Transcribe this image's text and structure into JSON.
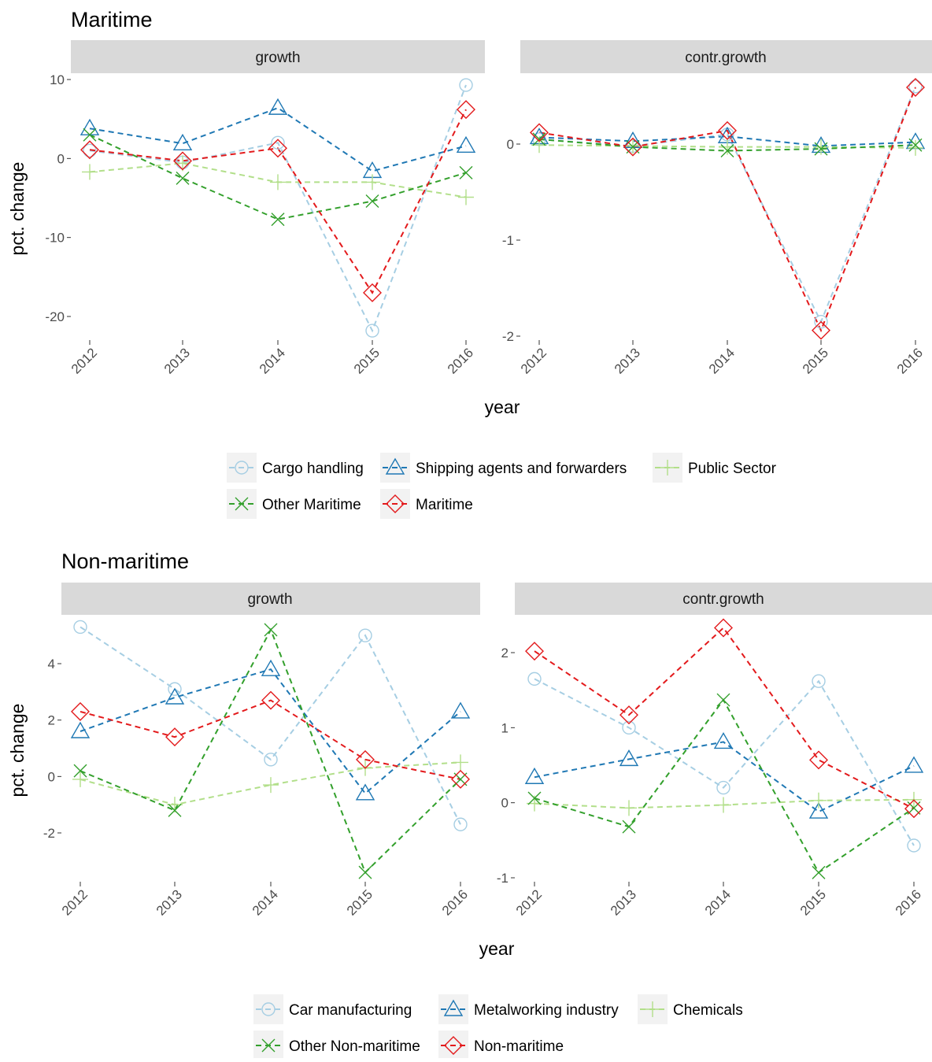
{
  "sections": [
    {
      "title": "Maritime",
      "ylabel": "pct. change",
      "xlabel": "year",
      "panels": [
        {
          "strip": "growth"
        },
        {
          "strip": "contr.growth"
        }
      ],
      "legend": [
        "Cargo handling",
        "Shipping agents and forwarders",
        "Public Sector",
        "Other Maritime",
        "Maritime"
      ]
    },
    {
      "title": "Non-maritime",
      "ylabel": "pct. change",
      "xlabel": "year",
      "panels": [
        {
          "strip": "growth"
        },
        {
          "strip": "contr.growth"
        }
      ],
      "legend": [
        "Car manufacturing",
        "Metalworking industry",
        "Chemicals",
        "Other Non-maritime",
        "Non-maritime"
      ]
    }
  ],
  "series_style": {
    "colors": [
      "#a6cee3",
      "#1f78b4",
      "#b2df8a",
      "#33a02c",
      "#e31a1c"
    ],
    "shapes": [
      "circle",
      "triangle",
      "plus",
      "cross",
      "diamond"
    ],
    "line": "dashed"
  },
  "chart_data": [
    {
      "type": "line",
      "section": "Maritime",
      "facet": "growth",
      "x": [
        2012,
        2013,
        2014,
        2015,
        2016
      ],
      "ylim": [
        -23,
        10
      ],
      "yticks": [
        10,
        0,
        -10,
        -20
      ],
      "series": [
        {
          "name": "Cargo handling",
          "values": [
            1.0,
            -0.5,
            2.0,
            -21.8,
            9.3
          ]
        },
        {
          "name": "Shipping agents and forwarders",
          "values": [
            3.8,
            1.9,
            6.4,
            -1.6,
            1.6
          ]
        },
        {
          "name": "Public Sector",
          "values": [
            -1.7,
            -0.6,
            -3.0,
            -3.0,
            -4.9
          ]
        },
        {
          "name": "Other Maritime",
          "values": [
            3.0,
            -2.5,
            -7.7,
            -5.4,
            -1.8
          ]
        },
        {
          "name": "Maritime",
          "values": [
            1.1,
            -0.3,
            1.3,
            -17.0,
            6.2
          ]
        }
      ]
    },
    {
      "type": "line",
      "section": "Maritime",
      "facet": "contr.growth",
      "x": [
        2012,
        2013,
        2014,
        2015,
        2016
      ],
      "ylim": [
        -2.1,
        0.6
      ],
      "yticks": [
        0,
        -1,
        -2
      ],
      "series": [
        {
          "name": "Cargo handling",
          "values": [
            0.05,
            -0.02,
            0.1,
            -1.85,
            0.6
          ]
        },
        {
          "name": "Shipping agents and forwarders",
          "values": [
            0.07,
            0.03,
            0.08,
            -0.02,
            0.02
          ]
        },
        {
          "name": "Public Sector",
          "values": [
            -0.01,
            -0.02,
            -0.03,
            -0.03,
            -0.04
          ]
        },
        {
          "name": "Other Maritime",
          "values": [
            0.05,
            -0.03,
            -0.07,
            -0.05,
            -0.01
          ]
        },
        {
          "name": "Maritime",
          "values": [
            0.12,
            -0.03,
            0.14,
            -1.94,
            0.59
          ]
        }
      ]
    },
    {
      "type": "line",
      "section": "Non-maritime",
      "facet": "growth",
      "x": [
        2012,
        2013,
        2014,
        2015,
        2016
      ],
      "ylim": [
        -3.5,
        5.5
      ],
      "yticks": [
        4,
        2,
        0,
        -2
      ],
      "series": [
        {
          "name": "Car manufacturing",
          "values": [
            5.3,
            3.1,
            0.6,
            5.0,
            -1.7
          ]
        },
        {
          "name": "Metalworking industry",
          "values": [
            1.6,
            2.8,
            3.8,
            -0.6,
            2.3
          ]
        },
        {
          "name": "Chemicals",
          "values": [
            -0.1,
            -1.0,
            -0.3,
            0.3,
            0.5
          ]
        },
        {
          "name": "Other Non-maritime",
          "values": [
            0.2,
            -1.2,
            5.2,
            -3.4,
            -0.1
          ]
        },
        {
          "name": "Non-maritime",
          "values": [
            2.3,
            1.4,
            2.7,
            0.6,
            -0.1
          ]
        }
      ]
    },
    {
      "type": "line",
      "section": "Non-maritime",
      "facet": "contr.growth",
      "x": [
        2012,
        2013,
        2014,
        2015,
        2016
      ],
      "ylim": [
        -1.0,
        2.4
      ],
      "yticks": [
        2,
        1,
        0,
        -1
      ],
      "series": [
        {
          "name": "Car manufacturing",
          "values": [
            1.65,
            1.0,
            0.2,
            1.62,
            -0.57
          ]
        },
        {
          "name": "Metalworking industry",
          "values": [
            0.34,
            0.58,
            0.81,
            -0.12,
            0.49
          ]
        },
        {
          "name": "Chemicals",
          "values": [
            -0.01,
            -0.07,
            -0.03,
            0.03,
            0.04
          ]
        },
        {
          "name": "Other Non-maritime",
          "values": [
            0.06,
            -0.32,
            1.37,
            -0.93,
            -0.07
          ]
        },
        {
          "name": "Non-maritime",
          "values": [
            2.02,
            1.17,
            2.33,
            0.57,
            -0.08
          ]
        }
      ]
    }
  ]
}
